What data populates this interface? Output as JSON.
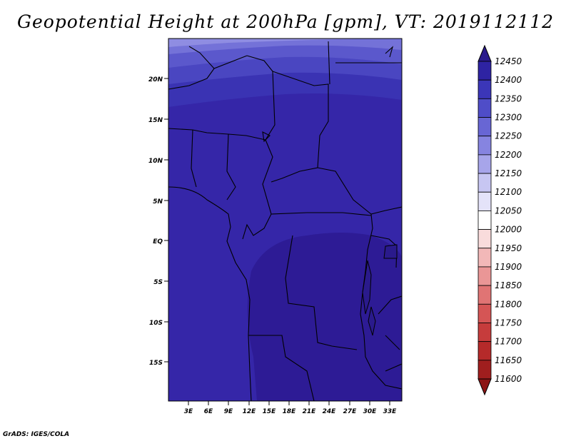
{
  "title": "Geopotential Height at 200hPa [gpm], VT: 2019112112",
  "footer": "GrADS: IGES/COLA",
  "map": {
    "lat_labels": [
      "20N",
      "15N",
      "10N",
      "5N",
      "EQ",
      "5S",
      "10S",
      "15S"
    ],
    "lon_labels": [
      "3E",
      "6E",
      "9E",
      "12E",
      "15E",
      "18E",
      "21E",
      "24E",
      "27E",
      "30E",
      "33E"
    ]
  },
  "colorbar": {
    "levels": [
      "12450",
      "12400",
      "12350",
      "12300",
      "12250",
      "12200",
      "12150",
      "12100",
      "12050",
      "12000",
      "11950",
      "11900",
      "11850",
      "11800",
      "11750",
      "11700",
      "11650",
      "11600"
    ],
    "colors": [
      "#2a1a8c",
      "#2e23a3",
      "#3b36b8",
      "#4f4dc8",
      "#6866d4",
      "#8684e0",
      "#a7a5ea",
      "#c7c6f2",
      "#e4e3f9",
      "#ffffff",
      "#f9dcdc",
      "#f2b8b8",
      "#ea9696",
      "#e07474",
      "#d55555",
      "#c63c3c",
      "#b52a2a",
      "#a01e1e",
      "#8c1414"
    ]
  }
}
